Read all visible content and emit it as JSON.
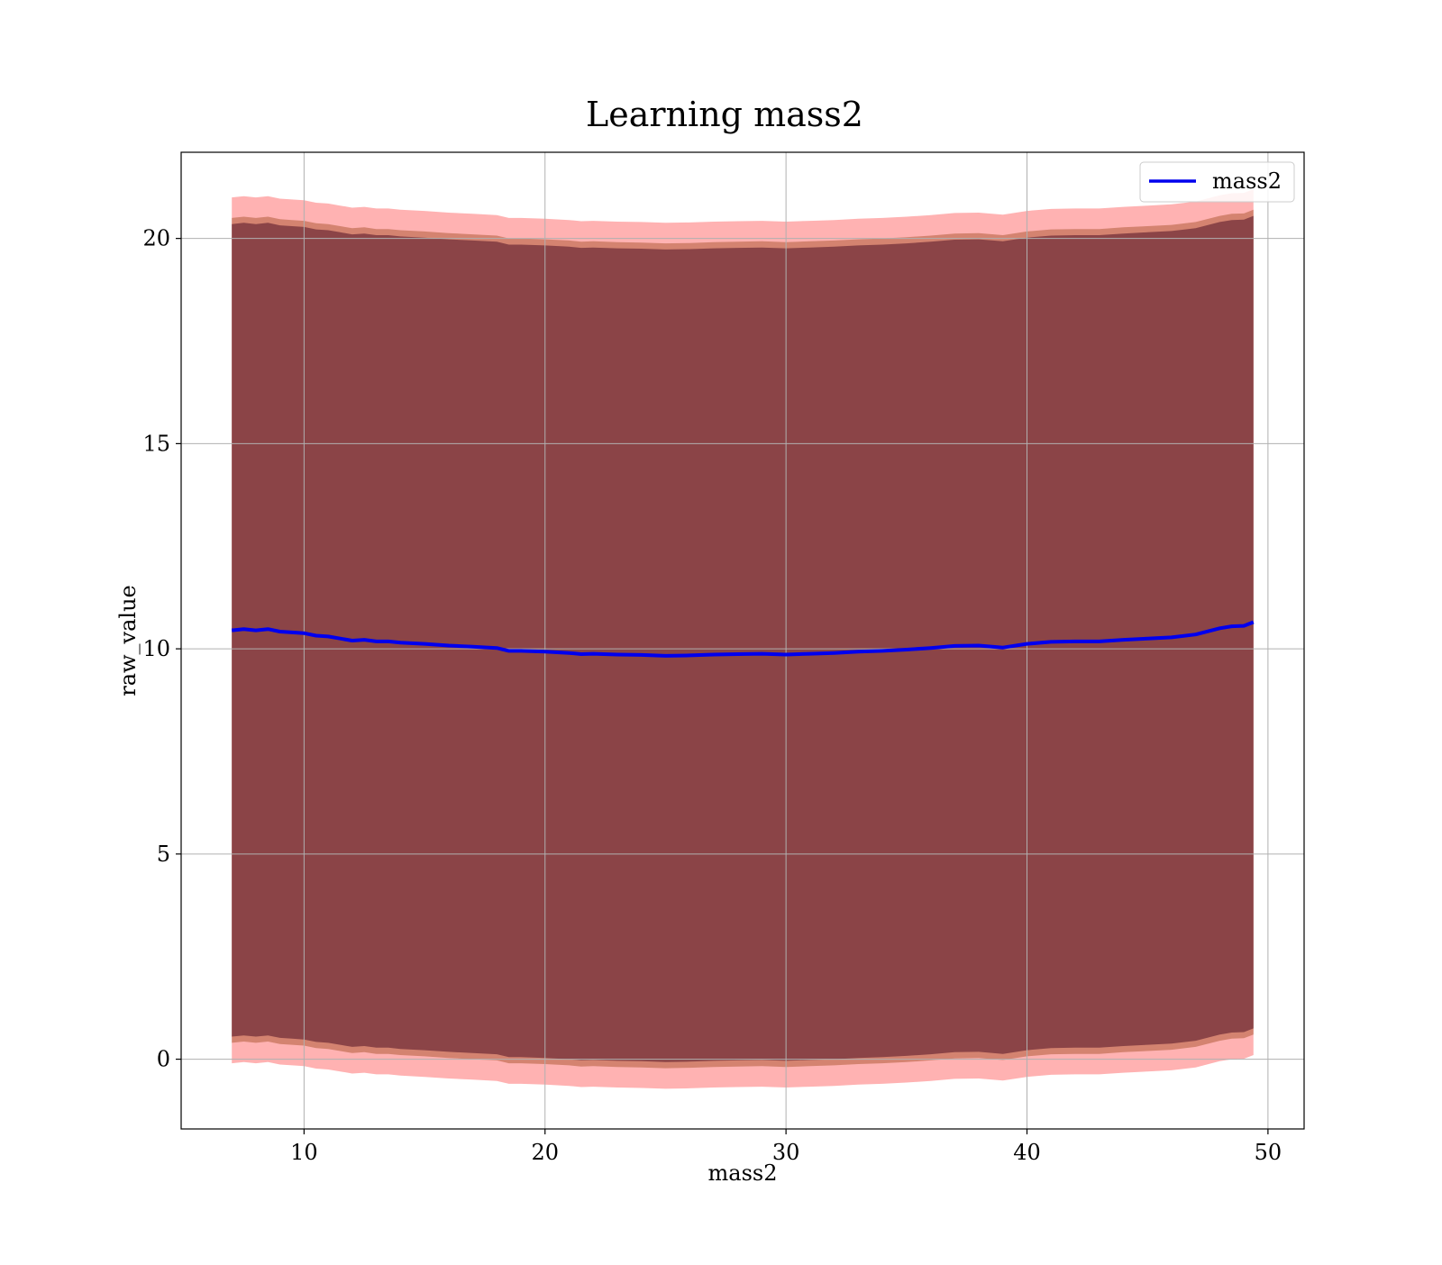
{
  "chart_data": {
    "type": "line",
    "title": "Learning mass2",
    "xlabel": "mass2",
    "ylabel": "raw_value",
    "xlim": [
      4.9,
      51.5
    ],
    "ylim": [
      -1.7,
      22.1
    ],
    "x_ticks": [
      10,
      20,
      30,
      40,
      50
    ],
    "y_ticks": [
      0,
      5,
      10,
      15,
      20
    ],
    "grid": true,
    "legend": {
      "position": "top-right",
      "entries": [
        "mass2"
      ]
    },
    "series": [
      {
        "name": "mass2",
        "color": "#0000ee",
        "x": [
          7.0,
          7.5,
          8.0,
          8.5,
          9.0,
          9.5,
          10.0,
          10.5,
          11.0,
          11.5,
          12.0,
          12.5,
          13.0,
          13.5,
          14.0,
          15.0,
          16.0,
          17.0,
          18.0,
          18.5,
          19.0,
          20.0,
          21.0,
          21.5,
          22.0,
          23.0,
          24.0,
          25.0,
          26.0,
          27.0,
          28.0,
          29.0,
          30.0,
          31.0,
          32.0,
          33.0,
          34.0,
          35.0,
          36.0,
          37.0,
          38.0,
          39.0,
          40.0,
          41.0,
          42.0,
          43.0,
          44.0,
          45.0,
          46.0,
          47.0,
          48.0,
          48.5,
          49.0,
          49.4
        ],
        "values": [
          10.45,
          10.48,
          10.45,
          10.48,
          10.42,
          10.4,
          10.38,
          10.32,
          10.3,
          10.25,
          10.2,
          10.22,
          10.18,
          10.18,
          10.15,
          10.12,
          10.08,
          10.05,
          10.02,
          9.95,
          9.95,
          9.93,
          9.9,
          9.87,
          9.88,
          9.86,
          9.85,
          9.83,
          9.84,
          9.86,
          9.87,
          9.88,
          9.86,
          9.88,
          9.9,
          9.93,
          9.95,
          9.98,
          10.02,
          10.07,
          10.08,
          10.03,
          10.12,
          10.17,
          10.18,
          10.18,
          10.22,
          10.25,
          10.28,
          10.35,
          10.5,
          10.55,
          10.56,
          10.65
        ]
      }
    ],
    "bands": [
      {
        "name": "outer",
        "color": "#ff0000",
        "opacity": 0.3,
        "offset": 10.55
      },
      {
        "name": "middle",
        "color": "#a04a20",
        "opacity": 0.45,
        "offset": 10.05
      },
      {
        "name": "inner",
        "color": "#5a1a2c",
        "opacity": 0.6,
        "offset": 9.9
      }
    ]
  }
}
